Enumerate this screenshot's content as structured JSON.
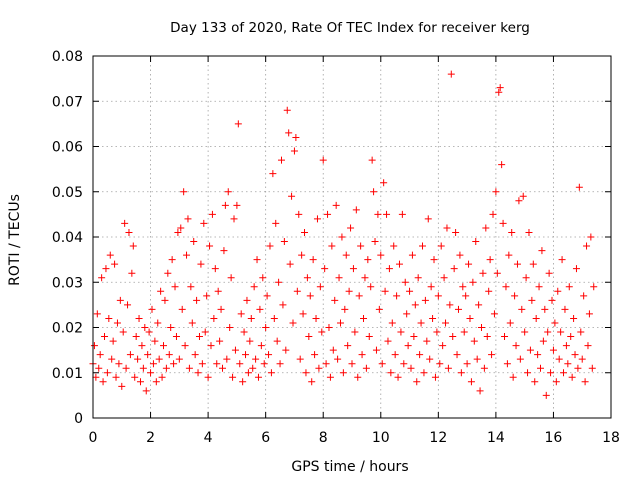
{
  "chart_data": {
    "type": "scatter",
    "title": "Day 133 of 2020, Rate Of TEC Index for receiver kerg",
    "xlabel": "GPS time / hours",
    "ylabel": "ROTI / TECUs",
    "xlim": [
      0,
      18
    ],
    "ylim": [
      0,
      0.08
    ],
    "x_ticks": [
      "0",
      "2",
      "4",
      "6",
      "8",
      "10",
      "12",
      "14",
      "16",
      "18"
    ],
    "y_ticks": [
      "0",
      "0.01",
      "0.02",
      "0.03",
      "0.04",
      "0.05",
      "0.06",
      "0.07",
      "0.08"
    ],
    "grid": true,
    "marker": "plus",
    "color": "#ff0000",
    "points": [
      [
        0.0,
        0.012
      ],
      [
        0.05,
        0.016
      ],
      [
        0.1,
        0.009
      ],
      [
        0.15,
        0.023
      ],
      [
        0.2,
        0.011
      ],
      [
        0.25,
        0.014
      ],
      [
        0.3,
        0.031
      ],
      [
        0.35,
        0.008
      ],
      [
        0.4,
        0.018
      ],
      [
        0.45,
        0.033
      ],
      [
        0.5,
        0.01
      ],
      [
        0.55,
        0.022
      ],
      [
        0.6,
        0.036
      ],
      [
        0.65,
        0.013
      ],
      [
        0.7,
        0.017
      ],
      [
        0.75,
        0.034
      ],
      [
        0.8,
        0.009
      ],
      [
        0.85,
        0.021
      ],
      [
        0.9,
        0.012
      ],
      [
        0.95,
        0.026
      ],
      [
        1.0,
        0.007
      ],
      [
        1.05,
        0.019
      ],
      [
        1.1,
        0.043
      ],
      [
        1.15,
        0.011
      ],
      [
        1.2,
        0.025
      ],
      [
        1.25,
        0.041
      ],
      [
        1.3,
        0.014
      ],
      [
        1.35,
        0.032
      ],
      [
        1.4,
        0.038
      ],
      [
        1.45,
        0.009
      ],
      [
        1.5,
        0.018
      ],
      [
        1.55,
        0.013
      ],
      [
        1.6,
        0.022
      ],
      [
        1.65,
        0.008
      ],
      [
        1.7,
        0.016
      ],
      [
        1.75,
        0.011
      ],
      [
        1.8,
        0.02
      ],
      [
        1.85,
        0.006
      ],
      [
        1.9,
        0.014
      ],
      [
        1.95,
        0.019
      ],
      [
        2.0,
        0.01
      ],
      [
        2.05,
        0.024
      ],
      [
        2.1,
        0.012
      ],
      [
        2.15,
        0.017
      ],
      [
        2.2,
        0.008
      ],
      [
        2.25,
        0.021
      ],
      [
        2.3,
        0.013
      ],
      [
        2.35,
        0.028
      ],
      [
        2.4,
        0.009
      ],
      [
        2.45,
        0.016
      ],
      [
        2.5,
        0.026
      ],
      [
        2.55,
        0.011
      ],
      [
        2.6,
        0.032
      ],
      [
        2.65,
        0.014
      ],
      [
        2.7,
        0.02
      ],
      [
        2.75,
        0.035
      ],
      [
        2.8,
        0.012
      ],
      [
        2.85,
        0.029
      ],
      [
        2.9,
        0.018
      ],
      [
        2.95,
        0.041
      ],
      [
        3.0,
        0.013
      ],
      [
        3.05,
        0.042
      ],
      [
        3.1,
        0.024
      ],
      [
        3.15,
        0.05
      ],
      [
        3.2,
        0.016
      ],
      [
        3.25,
        0.036
      ],
      [
        3.3,
        0.044
      ],
      [
        3.35,
        0.011
      ],
      [
        3.4,
        0.029
      ],
      [
        3.45,
        0.021
      ],
      [
        3.5,
        0.039
      ],
      [
        3.55,
        0.014
      ],
      [
        3.6,
        0.026
      ],
      [
        3.65,
        0.01
      ],
      [
        3.7,
        0.018
      ],
      [
        3.75,
        0.034
      ],
      [
        3.8,
        0.012
      ],
      [
        3.85,
        0.043
      ],
      [
        3.9,
        0.019
      ],
      [
        3.95,
        0.027
      ],
      [
        4.0,
        0.009
      ],
      [
        4.05,
        0.038
      ],
      [
        4.1,
        0.016
      ],
      [
        4.15,
        0.045
      ],
      [
        4.2,
        0.022
      ],
      [
        4.25,
        0.033
      ],
      [
        4.3,
        0.012
      ],
      [
        4.35,
        0.028
      ],
      [
        4.4,
        0.017
      ],
      [
        4.45,
        0.024
      ],
      [
        4.5,
        0.011
      ],
      [
        4.55,
        0.037
      ],
      [
        4.6,
        0.047
      ],
      [
        4.65,
        0.013
      ],
      [
        4.7,
        0.05
      ],
      [
        4.75,
        0.02
      ],
      [
        4.8,
        0.031
      ],
      [
        4.85,
        0.009
      ],
      [
        4.9,
        0.044
      ],
      [
        4.95,
        0.015
      ],
      [
        5.0,
        0.047
      ],
      [
        5.05,
        0.065
      ],
      [
        5.1,
        0.012
      ],
      [
        5.15,
        0.023
      ],
      [
        5.2,
        0.008
      ],
      [
        5.25,
        0.019
      ],
      [
        5.3,
        0.014
      ],
      [
        5.35,
        0.026
      ],
      [
        5.4,
        0.01
      ],
      [
        5.45,
        0.017
      ],
      [
        5.5,
        0.022
      ],
      [
        5.55,
        0.011
      ],
      [
        5.6,
        0.029
      ],
      [
        5.65,
        0.013
      ],
      [
        5.7,
        0.035
      ],
      [
        5.75,
        0.009
      ],
      [
        5.8,
        0.024
      ],
      [
        5.85,
        0.016
      ],
      [
        5.9,
        0.031
      ],
      [
        5.95,
        0.012
      ],
      [
        6.0,
        0.02
      ],
      [
        6.05,
        0.027
      ],
      [
        6.1,
        0.014
      ],
      [
        6.15,
        0.038
      ],
      [
        6.2,
        0.01
      ],
      [
        6.25,
        0.054
      ],
      [
        6.3,
        0.022
      ],
      [
        6.35,
        0.043
      ],
      [
        6.4,
        0.017
      ],
      [
        6.45,
        0.03
      ],
      [
        6.5,
        0.012
      ],
      [
        6.55,
        0.057
      ],
      [
        6.6,
        0.025
      ],
      [
        6.65,
        0.039
      ],
      [
        6.7,
        0.015
      ],
      [
        6.75,
        0.068
      ],
      [
        6.8,
        0.063
      ],
      [
        6.85,
        0.034
      ],
      [
        6.9,
        0.049
      ],
      [
        6.95,
        0.021
      ],
      [
        7.0,
        0.059
      ],
      [
        7.05,
        0.062
      ],
      [
        7.1,
        0.028
      ],
      [
        7.15,
        0.045
      ],
      [
        7.2,
        0.013
      ],
      [
        7.25,
        0.036
      ],
      [
        7.3,
        0.023
      ],
      [
        7.35,
        0.041
      ],
      [
        7.4,
        0.01
      ],
      [
        7.45,
        0.031
      ],
      [
        7.5,
        0.018
      ],
      [
        7.55,
        0.027
      ],
      [
        7.6,
        0.008
      ],
      [
        7.65,
        0.035
      ],
      [
        7.7,
        0.014
      ],
      [
        7.75,
        0.022
      ],
      [
        7.8,
        0.044
      ],
      [
        7.85,
        0.011
      ],
      [
        7.9,
        0.029
      ],
      [
        7.95,
        0.019
      ],
      [
        8.0,
        0.057
      ],
      [
        8.05,
        0.033
      ],
      [
        8.1,
        0.012
      ],
      [
        8.15,
        0.045
      ],
      [
        8.2,
        0.02
      ],
      [
        8.25,
        0.009
      ],
      [
        8.3,
        0.038
      ],
      [
        8.35,
        0.015
      ],
      [
        8.4,
        0.026
      ],
      [
        8.45,
        0.047
      ],
      [
        8.5,
        0.013
      ],
      [
        8.55,
        0.031
      ],
      [
        8.6,
        0.021
      ],
      [
        8.65,
        0.04
      ],
      [
        8.7,
        0.01
      ],
      [
        8.75,
        0.024
      ],
      [
        8.8,
        0.036
      ],
      [
        8.85,
        0.016
      ],
      [
        8.9,
        0.028
      ],
      [
        8.95,
        0.042
      ],
      [
        9.0,
        0.012
      ],
      [
        9.05,
        0.033
      ],
      [
        9.1,
        0.019
      ],
      [
        9.15,
        0.046
      ],
      [
        9.2,
        0.009
      ],
      [
        9.25,
        0.027
      ],
      [
        9.3,
        0.038
      ],
      [
        9.35,
        0.014
      ],
      [
        9.4,
        0.022
      ],
      [
        9.45,
        0.031
      ],
      [
        9.5,
        0.011
      ],
      [
        9.55,
        0.035
      ],
      [
        9.6,
        0.018
      ],
      [
        9.65,
        0.029
      ],
      [
        9.7,
        0.057
      ],
      [
        9.75,
        0.05
      ],
      [
        9.8,
        0.039
      ],
      [
        9.85,
        0.015
      ],
      [
        9.9,
        0.045
      ],
      [
        9.95,
        0.024
      ],
      [
        10.0,
        0.036
      ],
      [
        10.05,
        0.012
      ],
      [
        10.1,
        0.052
      ],
      [
        10.15,
        0.028
      ],
      [
        10.2,
        0.045
      ],
      [
        10.25,
        0.017
      ],
      [
        10.3,
        0.033
      ],
      [
        10.35,
        0.01
      ],
      [
        10.4,
        0.021
      ],
      [
        10.45,
        0.038
      ],
      [
        10.5,
        0.014
      ],
      [
        10.55,
        0.027
      ],
      [
        10.6,
        0.009
      ],
      [
        10.65,
        0.034
      ],
      [
        10.7,
        0.019
      ],
      [
        10.75,
        0.045
      ],
      [
        10.8,
        0.012
      ],
      [
        10.85,
        0.03
      ],
      [
        10.9,
        0.023
      ],
      [
        10.95,
        0.016
      ],
      [
        11.0,
        0.028
      ],
      [
        11.05,
        0.011
      ],
      [
        11.1,
        0.036
      ],
      [
        11.15,
        0.018
      ],
      [
        11.2,
        0.025
      ],
      [
        11.25,
        0.008
      ],
      [
        11.3,
        0.031
      ],
      [
        11.35,
        0.014
      ],
      [
        11.4,
        0.021
      ],
      [
        11.45,
        0.038
      ],
      [
        11.5,
        0.01
      ],
      [
        11.55,
        0.026
      ],
      [
        11.6,
        0.017
      ],
      [
        11.65,
        0.044
      ],
      [
        11.7,
        0.013
      ],
      [
        11.75,
        0.029
      ],
      [
        11.8,
        0.022
      ],
      [
        11.85,
        0.035
      ],
      [
        11.9,
        0.009
      ],
      [
        11.95,
        0.019
      ],
      [
        12.0,
        0.027
      ],
      [
        12.05,
        0.012
      ],
      [
        12.1,
        0.038
      ],
      [
        12.15,
        0.016
      ],
      [
        12.2,
        0.031
      ],
      [
        12.25,
        0.021
      ],
      [
        12.3,
        0.042
      ],
      [
        12.35,
        0.011
      ],
      [
        12.4,
        0.025
      ],
      [
        12.45,
        0.076
      ],
      [
        12.5,
        0.018
      ],
      [
        12.55,
        0.033
      ],
      [
        12.6,
        0.041
      ],
      [
        12.65,
        0.014
      ],
      [
        12.7,
        0.024
      ],
      [
        12.75,
        0.036
      ],
      [
        12.8,
        0.01
      ],
      [
        12.85,
        0.029
      ],
      [
        12.9,
        0.019
      ],
      [
        12.95,
        0.027
      ],
      [
        13.0,
        0.012
      ],
      [
        13.05,
        0.034
      ],
      [
        13.1,
        0.022
      ],
      [
        13.15,
        0.008
      ],
      [
        13.2,
        0.03
      ],
      [
        13.25,
        0.017
      ],
      [
        13.3,
        0.039
      ],
      [
        13.35,
        0.013
      ],
      [
        13.4,
        0.025
      ],
      [
        13.45,
        0.006
      ],
      [
        13.5,
        0.02
      ],
      [
        13.55,
        0.032
      ],
      [
        13.6,
        0.011
      ],
      [
        13.65,
        0.042
      ],
      [
        13.7,
        0.018
      ],
      [
        13.75,
        0.028
      ],
      [
        13.8,
        0.035
      ],
      [
        13.85,
        0.014
      ],
      [
        13.9,
        0.045
      ],
      [
        13.95,
        0.023
      ],
      [
        14.0,
        0.05
      ],
      [
        14.05,
        0.032
      ],
      [
        14.1,
        0.072
      ],
      [
        14.15,
        0.073
      ],
      [
        14.2,
        0.056
      ],
      [
        14.25,
        0.043
      ],
      [
        14.3,
        0.018
      ],
      [
        14.35,
        0.029
      ],
      [
        14.4,
        0.012
      ],
      [
        14.45,
        0.036
      ],
      [
        14.5,
        0.021
      ],
      [
        14.55,
        0.041
      ],
      [
        14.6,
        0.009
      ],
      [
        14.65,
        0.027
      ],
      [
        14.7,
        0.016
      ],
      [
        14.75,
        0.034
      ],
      [
        14.8,
        0.048
      ],
      [
        14.85,
        0.013
      ],
      [
        14.9,
        0.024
      ],
      [
        14.95,
        0.049
      ],
      [
        15.0,
        0.019
      ],
      [
        15.05,
        0.031
      ],
      [
        15.1,
        0.01
      ],
      [
        15.15,
        0.041
      ],
      [
        15.2,
        0.015
      ],
      [
        15.25,
        0.026
      ],
      [
        15.3,
        0.034
      ],
      [
        15.35,
        0.008
      ],
      [
        15.4,
        0.022
      ],
      [
        15.45,
        0.014
      ],
      [
        15.5,
        0.029
      ],
      [
        15.55,
        0.011
      ],
      [
        15.6,
        0.037
      ],
      [
        15.65,
        0.017
      ],
      [
        15.7,
        0.024
      ],
      [
        15.75,
        0.005
      ],
      [
        15.8,
        0.019
      ],
      [
        15.85,
        0.032
      ],
      [
        15.9,
        0.01
      ],
      [
        15.95,
        0.026
      ],
      [
        16.0,
        0.015
      ],
      [
        16.05,
        0.021
      ],
      [
        16.1,
        0.008
      ],
      [
        16.15,
        0.028
      ],
      [
        16.2,
        0.013
      ],
      [
        16.25,
        0.019
      ],
      [
        16.3,
        0.035
      ],
      [
        16.35,
        0.01
      ],
      [
        16.4,
        0.024
      ],
      [
        16.45,
        0.016
      ],
      [
        16.5,
        0.012
      ],
      [
        16.55,
        0.029
      ],
      [
        16.6,
        0.018
      ],
      [
        16.65,
        0.009
      ],
      [
        16.7,
        0.022
      ],
      [
        16.75,
        0.014
      ],
      [
        16.8,
        0.033
      ],
      [
        16.85,
        0.011
      ],
      [
        16.9,
        0.051
      ],
      [
        16.95,
        0.019
      ],
      [
        17.0,
        0.013
      ],
      [
        17.05,
        0.027
      ],
      [
        17.1,
        0.008
      ],
      [
        17.15,
        0.038
      ],
      [
        17.2,
        0.016
      ],
      [
        17.25,
        0.023
      ],
      [
        17.3,
        0.04
      ],
      [
        17.35,
        0.011
      ],
      [
        17.4,
        0.029
      ]
    ]
  }
}
